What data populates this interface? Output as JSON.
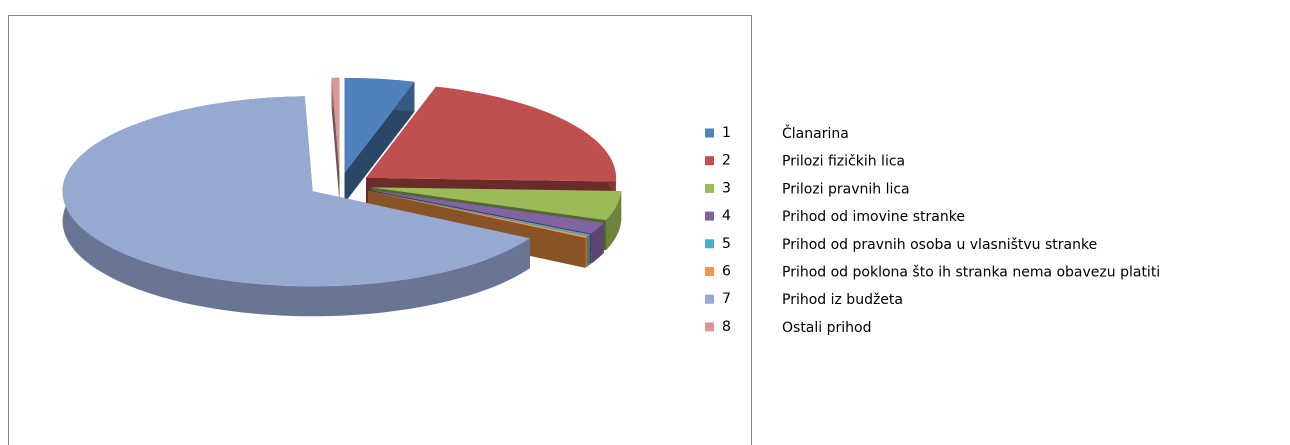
{
  "chart_data": {
    "type": "pie3d",
    "categories": [
      "1",
      "2",
      "3",
      "4",
      "5",
      "6",
      "7",
      "8"
    ],
    "category_descriptions": [
      "Članarina",
      "Prilozi fizičkih lica",
      "Prilozi pravnih lica",
      "Prihod od imovine stranke",
      "Prihod od pravnih osoba u vlasništvu stranke",
      "Prihod od poklona što ih stranka nema obavezu platiti",
      "Prihod iz budžeta",
      "Ostali prihod"
    ],
    "values": [
      4.5,
      21,
      5,
      2,
      0.3,
      0.3,
      66,
      0.5
    ],
    "colors": [
      "#4f81bd",
      "#c0504d",
      "#9bbb59",
      "#8064a2",
      "#4bacc6",
      "#f79646",
      "#95a9d3",
      "#d99694"
    ],
    "legend": "right"
  }
}
